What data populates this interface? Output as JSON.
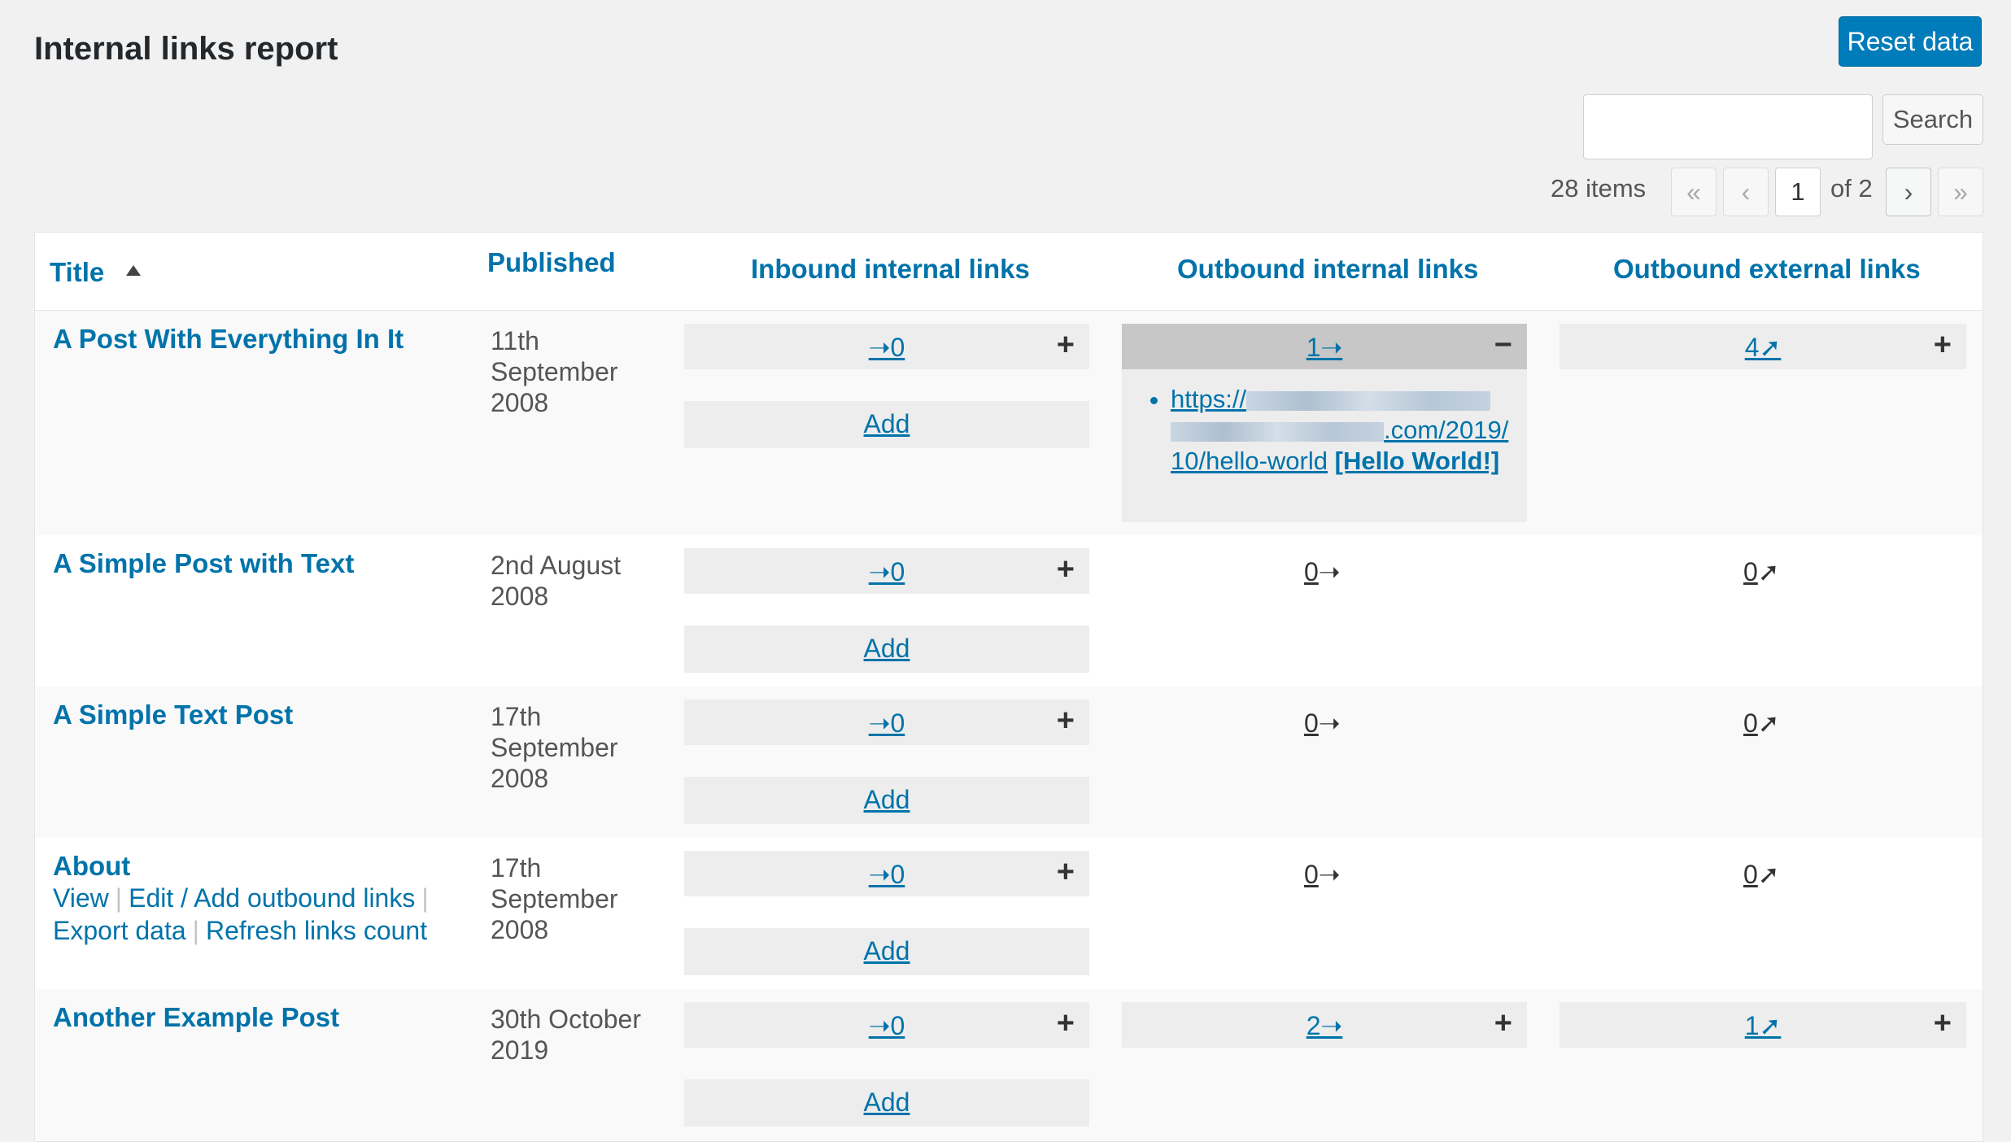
{
  "header": {
    "title": "Internal links report",
    "reset_label": "Reset data",
    "search_placeholder": "",
    "search_label": "Search"
  },
  "pagination": {
    "items": "28 items",
    "first": "«",
    "prev": "‹",
    "current": "1",
    "of": "of 2",
    "next": "›",
    "last": "»"
  },
  "columns": {
    "title": "Title",
    "published": "Published",
    "inbound": "Inbound internal links",
    "outbound_internal": "Outbound internal links",
    "outbound_external": "Outbound external links"
  },
  "icons": {
    "inbound_arrow": "arrow-right-icon",
    "internal_arrow": "arrow-right-icon",
    "external_arrow": "arrow-up-right-icon",
    "plus": "plus-icon",
    "minus": "minus-icon",
    "sort": "sort-ascending-icon"
  },
  "rows": [
    {
      "title": "A Post With Everything In It",
      "date": "11th September 2008",
      "inbound": "0",
      "add": "Add",
      "outbound_internal": "1",
      "outbound_external": "4",
      "expanded": {
        "url_prefix": "https://",
        "url_suffix": ".com/2019/10/hello-world",
        "anchor": "[Hello World!]"
      }
    },
    {
      "title": "A Simple Post with Text",
      "date": "2nd August 2008",
      "inbound": "0",
      "add": "Add",
      "outbound_internal": "0",
      "outbound_external": "0"
    },
    {
      "title": "A Simple Text Post",
      "date": "17th September 2008",
      "inbound": "0",
      "add": "Add",
      "outbound_internal": "0",
      "outbound_external": "0"
    },
    {
      "title": "About",
      "date": "17th September 2008",
      "inbound": "0",
      "add": "Add",
      "outbound_internal": "0",
      "outbound_external": "0",
      "actions": [
        "View",
        "Edit / Add outbound links",
        "Export data",
        "Refresh links count"
      ]
    },
    {
      "title": "Another Example Post",
      "date": "30th October 2019",
      "inbound": "0",
      "add": "Add",
      "outbound_internal": "2",
      "outbound_external": "1"
    }
  ],
  "colors": {
    "accent": "#0073aa",
    "button": "#007cba",
    "background": "#f1f1f1"
  }
}
